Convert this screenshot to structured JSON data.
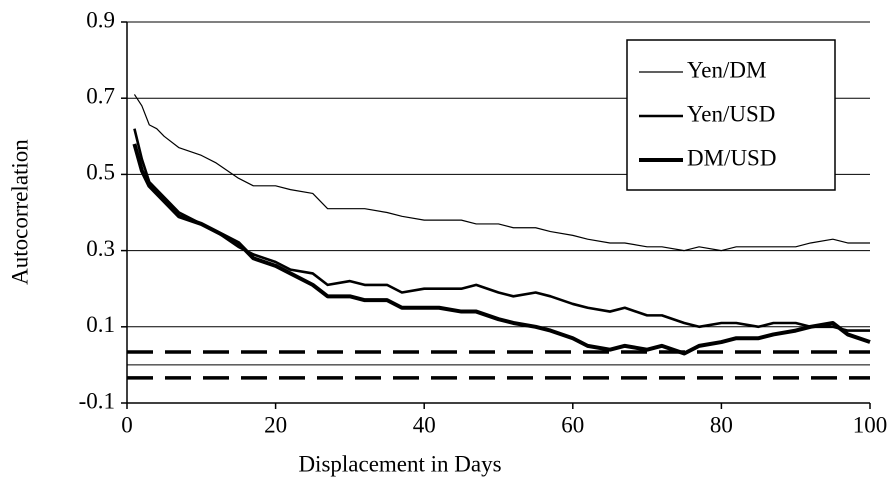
{
  "chart_data": {
    "type": "line",
    "x_label": "Displacement in Days",
    "y_label": "Autocorrelation",
    "x": [
      1,
      2,
      3,
      4,
      5,
      7,
      10,
      12,
      15,
      17,
      20,
      22,
      25,
      27,
      30,
      32,
      35,
      37,
      40,
      42,
      45,
      47,
      50,
      52,
      55,
      57,
      60,
      62,
      65,
      67,
      70,
      72,
      75,
      77,
      80,
      82,
      85,
      87,
      90,
      92,
      95,
      97,
      100
    ],
    "series": [
      {
        "name": "Yen/DM",
        "color": "#000000",
        "width": 1.2,
        "values": [
          0.71,
          0.68,
          0.63,
          0.62,
          0.6,
          0.57,
          0.55,
          0.53,
          0.49,
          0.47,
          0.47,
          0.46,
          0.45,
          0.41,
          0.41,
          0.41,
          0.4,
          0.39,
          0.38,
          0.38,
          0.38,
          0.37,
          0.37,
          0.36,
          0.36,
          0.35,
          0.34,
          0.33,
          0.32,
          0.32,
          0.31,
          0.31,
          0.3,
          0.31,
          0.3,
          0.31,
          0.31,
          0.31,
          0.31,
          0.32,
          0.33,
          0.32,
          0.32
        ]
      },
      {
        "name": "Yen/USD",
        "color": "#000000",
        "width": 2.6,
        "values": [
          0.62,
          0.54,
          0.48,
          0.46,
          0.44,
          0.4,
          0.37,
          0.35,
          0.31,
          0.29,
          0.27,
          0.25,
          0.24,
          0.21,
          0.22,
          0.21,
          0.21,
          0.19,
          0.2,
          0.2,
          0.2,
          0.21,
          0.19,
          0.18,
          0.19,
          0.18,
          0.16,
          0.15,
          0.14,
          0.15,
          0.13,
          0.13,
          0.11,
          0.1,
          0.11,
          0.11,
          0.1,
          0.11,
          0.11,
          0.1,
          0.1,
          0.09,
          0.09
        ]
      },
      {
        "name": "DM/USD",
        "color": "#000000",
        "width": 4,
        "values": [
          0.58,
          0.51,
          0.47,
          0.45,
          0.43,
          0.39,
          0.37,
          0.35,
          0.32,
          0.28,
          0.26,
          0.24,
          0.21,
          0.18,
          0.18,
          0.17,
          0.17,
          0.15,
          0.15,
          0.15,
          0.14,
          0.14,
          0.12,
          0.11,
          0.1,
          0.09,
          0.07,
          0.05,
          0.04,
          0.05,
          0.04,
          0.05,
          0.03,
          0.05,
          0.06,
          0.07,
          0.07,
          0.08,
          0.09,
          0.1,
          0.11,
          0.08,
          0.06
        ]
      }
    ],
    "hlines": [
      {
        "value": 0,
        "style": "solid"
      },
      {
        "value": 0.034,
        "style": "dashed"
      },
      {
        "value": -0.034,
        "style": "dashed"
      }
    ],
    "xlim": [
      0,
      100
    ],
    "xticks": [
      0,
      20,
      40,
      60,
      80,
      100
    ],
    "ylim": [
      -0.1,
      0.9
    ],
    "yticks": [
      -0.1,
      0.1,
      0.3,
      0.5,
      0.7,
      0.9
    ],
    "grid": true,
    "legend": "upper right"
  }
}
